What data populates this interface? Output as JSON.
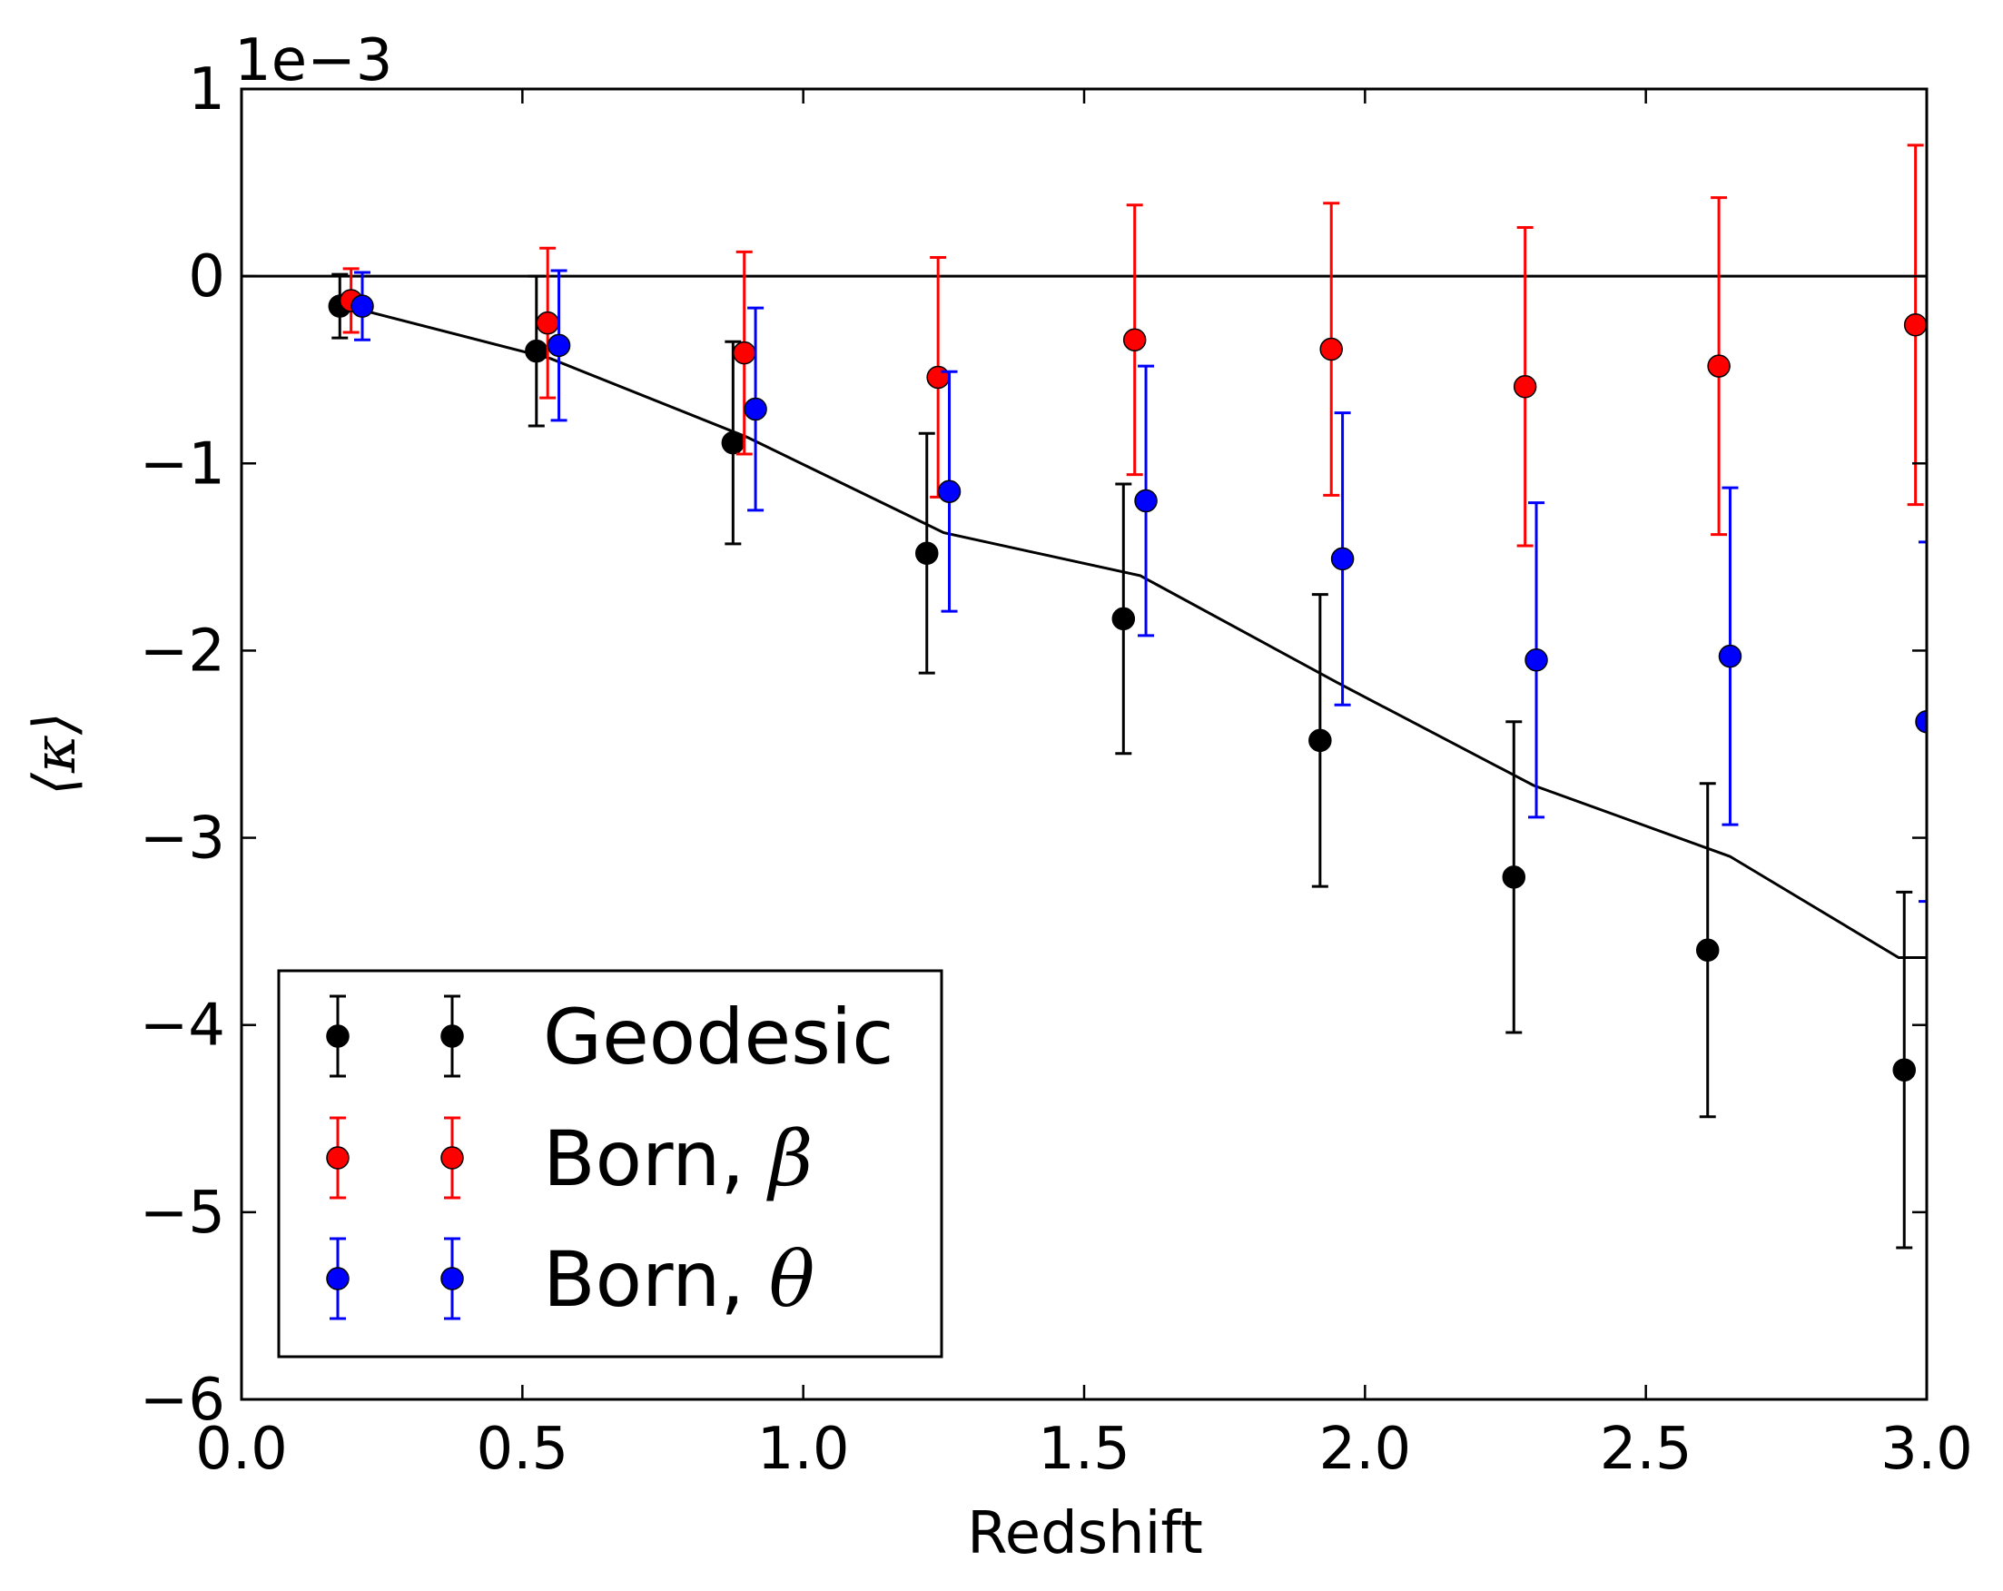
{
  "chart_data": {
    "type": "scatter",
    "xlabel": "Redshift",
    "ylabel": "⟨κ⟩",
    "offset_label": "1e−3",
    "xlim": [
      0.0,
      3.0
    ],
    "ylim": [
      -6.0,
      1.0
    ],
    "xticks": [
      "0.0",
      "0.5",
      "1.0",
      "1.5",
      "2.0",
      "2.5",
      "3.0"
    ],
    "yticks": [
      "1",
      "0",
      "−1",
      "−2",
      "−3",
      "−4",
      "−5",
      "−6"
    ],
    "ytick_values": [
      1,
      0,
      -1,
      -2,
      -3,
      -4,
      -5,
      -6
    ],
    "xtick_values": [
      0.0,
      0.5,
      1.0,
      1.5,
      2.0,
      2.5,
      3.0
    ],
    "zero_line": 0,
    "series": [
      {
        "name": "Geodesic",
        "name_prefix": "Geodesic",
        "name_symbol": "",
        "color": "#000000",
        "x": [
          0.175,
          0.525,
          0.875,
          1.22,
          1.57,
          1.92,
          2.265,
          2.61,
          2.96
        ],
        "y": [
          -0.16,
          -0.4,
          -0.89,
          -1.48,
          -1.83,
          -2.48,
          -3.21,
          -3.6,
          -4.24
        ],
        "err": [
          0.17,
          0.4,
          0.54,
          0.64,
          0.72,
          0.78,
          0.83,
          0.89,
          0.95
        ]
      },
      {
        "name": "Born, β",
        "name_prefix": "Born, ",
        "name_symbol": "β",
        "color": "#ff0000",
        "x": [
          0.195,
          0.545,
          0.895,
          1.24,
          1.59,
          1.94,
          2.285,
          2.63,
          2.98
        ],
        "y": [
          -0.13,
          -0.25,
          -0.41,
          -0.54,
          -0.34,
          -0.39,
          -0.59,
          -0.48,
          -0.26
        ],
        "err": [
          0.17,
          0.4,
          0.54,
          0.64,
          0.72,
          0.78,
          0.85,
          0.9,
          0.96
        ]
      },
      {
        "name": "Born, θ",
        "name_prefix": "Born, ",
        "name_symbol": "θ",
        "color": "#0000ff",
        "x": [
          0.215,
          0.565,
          0.915,
          1.26,
          1.61,
          1.96,
          2.305,
          2.65,
          3.0
        ],
        "y": [
          -0.16,
          -0.37,
          -0.71,
          -1.15,
          -1.2,
          -1.51,
          -2.05,
          -2.03,
          -2.38
        ],
        "err": [
          0.18,
          0.4,
          0.54,
          0.64,
          0.72,
          0.78,
          0.84,
          0.9,
          0.96
        ]
      }
    ],
    "theory_line": {
      "color": "#000000",
      "x": [
        0.2,
        0.55,
        0.9,
        1.25,
        1.6,
        1.95,
        2.3,
        2.65,
        2.95,
        3.0
      ],
      "y": [
        -0.17,
        -0.44,
        -0.86,
        -1.37,
        -1.6,
        -2.17,
        -2.72,
        -3.1,
        -3.64,
        -3.64
      ]
    },
    "legend": {
      "position": "lower-left"
    }
  }
}
